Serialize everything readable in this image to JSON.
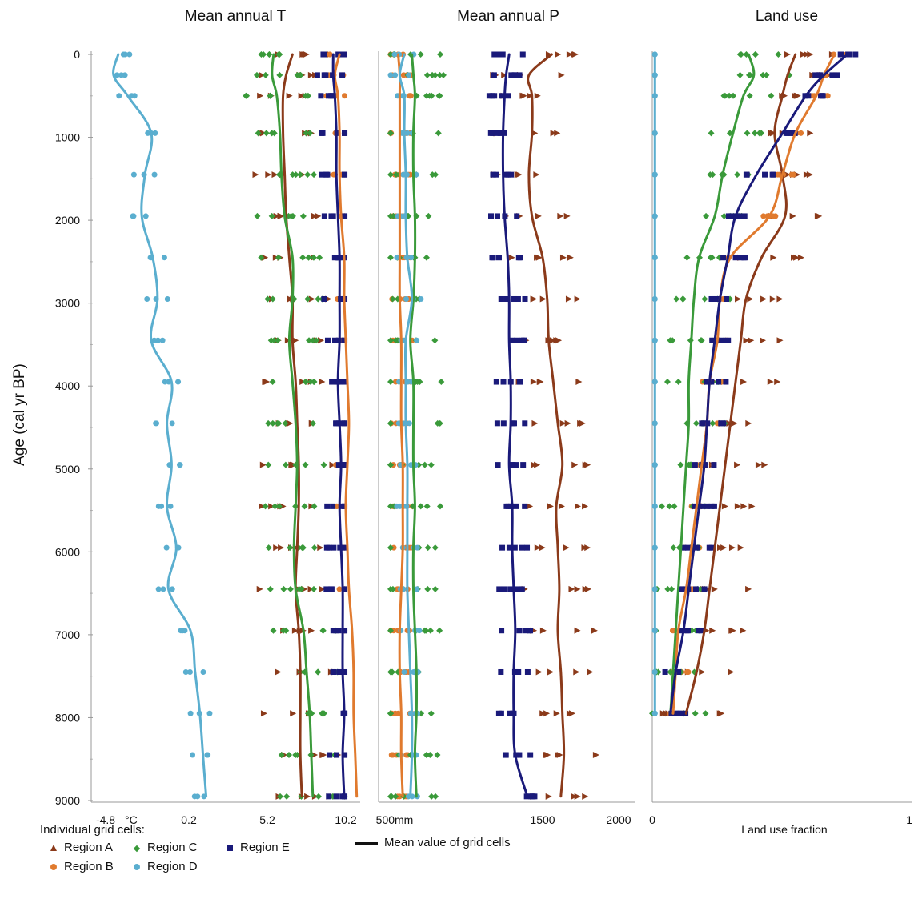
{
  "chart_data": {
    "type": "scatter",
    "ylabel": "Age (cal yr BP)",
    "y_ticks": [
      "0",
      "1000",
      "2000",
      "3000",
      "4000",
      "5000",
      "6000",
      "7000",
      "8000",
      "9000"
    ],
    "ylim": [
      0,
      9000
    ],
    "y_reversed": true,
    "ages": [
      0,
      250,
      500,
      950,
      1450,
      1950,
      2450,
      2950,
      3450,
      3950,
      4450,
      4950,
      5450,
      5950,
      6450,
      6950,
      7450,
      7950,
      8450,
      8950
    ],
    "series": [
      {
        "name": "Region A",
        "color": "#8b3a1a",
        "marker": "triangle"
      },
      {
        "name": "Region B",
        "color": "#e07a2e",
        "marker": "circle"
      },
      {
        "name": "Region C",
        "color": "#3a9a3a",
        "marker": "diamond"
      },
      {
        "name": "Region D",
        "color": "#5aaecf",
        "marker": "circle"
      },
      {
        "name": "Region E",
        "color": "#1a1a7a",
        "marker": "square"
      }
    ],
    "panels": [
      {
        "title": "Mean annual T",
        "tick_labels": [
          "-4.8",
          "°C",
          "0.2",
          "5.2",
          "10.2"
        ],
        "xlim": [
          -4.8,
          10.2
        ],
        "xlabel": "",
        "means": {
          "Region A": [
            6.8,
            6.4,
            6.2,
            6.2,
            6.3,
            6.4,
            6.6,
            6.8,
            6.8,
            7.0,
            7.1,
            7.2,
            7.2,
            7.1,
            7.0,
            7.2,
            7.3,
            7.3,
            7.3,
            7.4
          ],
          "Region B": [
            9.8,
            9.5,
            9.7,
            9.8,
            9.8,
            9.9,
            10.1,
            10.1,
            10.2,
            10.3,
            10.4,
            10.3,
            10.2,
            10.3,
            10.4,
            10.6,
            10.7,
            10.7,
            10.8,
            10.9
          ],
          "Region C": [
            5.6,
            5.5,
            5.8,
            6.0,
            6.1,
            6.3,
            6.8,
            6.8,
            6.6,
            6.8,
            7.0,
            7.1,
            7.0,
            6.9,
            7.0,
            7.5,
            7.7,
            7.9,
            8.0,
            8.1
          ],
          "Region D": [
            -4.3,
            -4.6,
            -3.7,
            -2.2,
            -2.6,
            -2.8,
            -2.1,
            -1.8,
            -2.2,
            -0.9,
            -1.2,
            -0.9,
            -1.2,
            -0.6,
            -1.1,
            0.3,
            0.6,
            0.9,
            1.1,
            1.3
          ],
          "Region E": [
            9.4,
            9.4,
            9.5,
            9.6,
            9.6,
            9.7,
            9.8,
            9.8,
            9.8,
            9.7,
            9.8,
            9.9,
            9.8,
            9.9,
            10.0,
            10.0,
            10.0,
            10.1,
            10.0,
            10.1
          ]
        }
      },
      {
        "title": "Mean annual P",
        "tick_labels": [
          "500mm",
          "1500",
          "2000"
        ],
        "xlim": [
          500,
          2000
        ],
        "xlabel": "",
        "means": {
          "Region A": [
            1560,
            1410,
            1430,
            1430,
            1410,
            1430,
            1500,
            1530,
            1540,
            1570,
            1600,
            1630,
            1590,
            1600,
            1610,
            1600,
            1620,
            1630,
            1640,
            1620
          ],
          "Region B": [
            550,
            560,
            560,
            560,
            560,
            560,
            560,
            560,
            570,
            570,
            570,
            580,
            580,
            580,
            570,
            560,
            560,
            570,
            570,
            580
          ],
          "Region C": [
            640,
            650,
            660,
            650,
            650,
            660,
            660,
            650,
            630,
            650,
            650,
            650,
            660,
            650,
            650,
            660,
            670,
            670,
            660,
            670
          ],
          "Region D": [
            590,
            560,
            590,
            590,
            600,
            600,
            610,
            640,
            600,
            600,
            600,
            610,
            610,
            610,
            610,
            620,
            630,
            640,
            640,
            630
          ],
          "Region E": [
            1280,
            1260,
            1250,
            1240,
            1240,
            1250,
            1270,
            1280,
            1280,
            1290,
            1290,
            1280,
            1300,
            1300,
            1310,
            1320,
            1310,
            1310,
            1320,
            1400
          ]
        }
      },
      {
        "title": "Land use",
        "tick_labels": [
          "0",
          "1"
        ],
        "xlim": [
          0,
          1
        ],
        "xlabel": "Land use fraction",
        "means": {
          "Region A": [
            0.55,
            0.52,
            0.5,
            0.47,
            0.5,
            0.51,
            0.42,
            0.36,
            0.34,
            0.32,
            0.3,
            0.28,
            0.26,
            0.24,
            0.22,
            0.2,
            0.17,
            0.13,
            null,
            null
          ],
          "Region B": [
            0.7,
            0.66,
            0.63,
            0.55,
            0.5,
            0.45,
            0.3,
            0.26,
            0.25,
            0.22,
            0.21,
            0.19,
            0.17,
            0.15,
            0.13,
            0.1,
            0.09,
            0.08,
            null,
            null
          ],
          "Region C": [
            0.37,
            0.39,
            0.35,
            0.31,
            0.27,
            0.24,
            0.18,
            0.16,
            0.15,
            0.14,
            0.14,
            0.13,
            0.12,
            0.11,
            0.1,
            0.09,
            0.08,
            0.07,
            null,
            null
          ],
          "Region D": [
            0.01,
            0.01,
            0.01,
            0.01,
            0.01,
            0.01,
            0.01,
            0.01,
            0.01,
            0.01,
            0.01,
            0.01,
            0.01,
            0.01,
            0.01,
            0.01,
            0.01,
            0.01,
            null,
            null
          ],
          "Region E": [
            0.75,
            0.66,
            0.59,
            0.5,
            0.4,
            0.32,
            0.29,
            0.26,
            0.24,
            0.22,
            0.21,
            0.2,
            0.18,
            0.16,
            0.14,
            0.12,
            0.09,
            0.07,
            null,
            null
          ]
        }
      }
    ]
  },
  "legend": {
    "title": "Individual grid cells:",
    "items": [
      "Region A",
      "Region C",
      "Region E",
      "Region B",
      "Region D"
    ],
    "mean_label": "Mean value of grid cells"
  }
}
